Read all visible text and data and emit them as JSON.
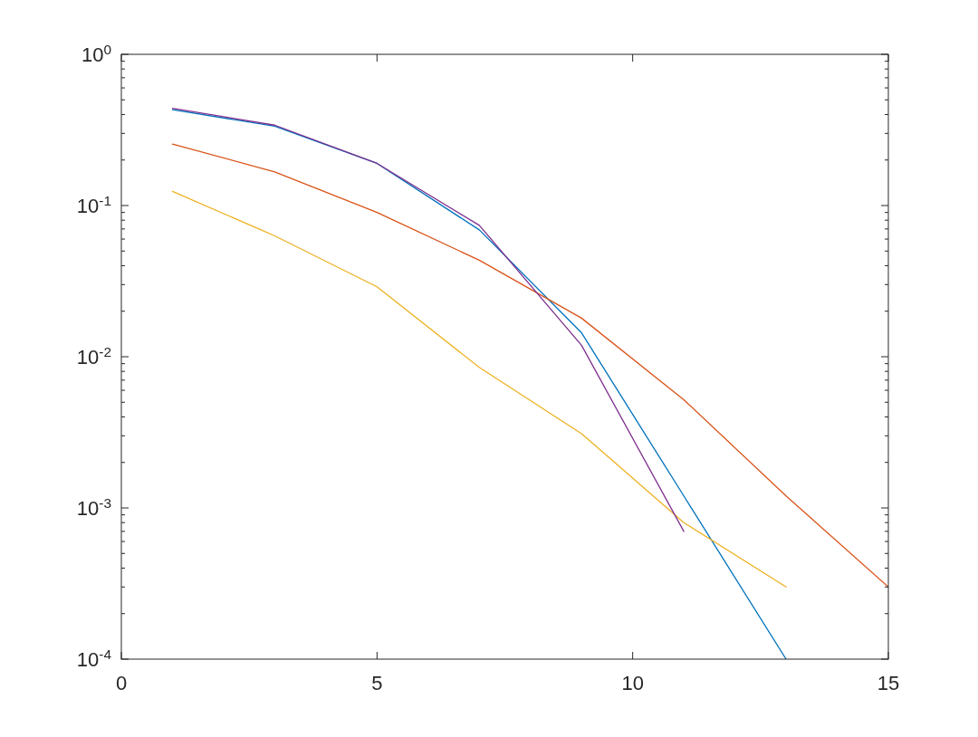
{
  "chart_data": {
    "type": "line",
    "line_style": "solid",
    "log": "y",
    "xlim": [
      0,
      15
    ],
    "xticks": [
      0,
      5,
      10,
      15
    ],
    "ylim": [
      0.0001,
      1
    ],
    "yticks": [
      {
        "value": 0.0001,
        "label": "10$^{-4}$"
      },
      {
        "value": 0.0002,
        "label": null
      },
      {
        "value": 0.0003,
        "label": null
      },
      {
        "value": 0.0004,
        "label": null
      },
      {
        "value": 0.0005,
        "label": null
      },
      {
        "value": 0.0006,
        "label": null
      },
      {
        "value": 0.0007,
        "label": null
      },
      {
        "value": 0.0008,
        "label": null
      },
      {
        "value": 0.0009,
        "label": null
      },
      {
        "value": 0.001,
        "label": "10$^{-3}$"
      },
      {
        "value": 0.002,
        "label": null
      },
      {
        "value": 0.003,
        "label": null
      },
      {
        "value": 0.004,
        "label": null
      },
      {
        "value": 0.005,
        "label": null
      },
      {
        "value": 0.006,
        "label": null
      },
      {
        "value": 0.007,
        "label": null
      },
      {
        "value": 0.008,
        "label": null
      },
      {
        "value": 0.009,
        "label": null
      },
      {
        "value": 0.01,
        "label": "10$^{-2}$"
      },
      {
        "value": 0.02,
        "label": null
      },
      {
        "value": 0.03,
        "label": null
      },
      {
        "value": 0.04,
        "label": null
      },
      {
        "value": 0.05,
        "label": null
      },
      {
        "value": 0.06,
        "label": null
      },
      {
        "value": 0.07,
        "label": null
      },
      {
        "value": 0.08,
        "label": null
      },
      {
        "value": 0.09,
        "label": null
      },
      {
        "value": 0.1,
        "label": "10$^{-1}$"
      },
      {
        "value": 0.2,
        "label": null
      },
      {
        "value": 0.3,
        "label": null
      },
      {
        "value": 0.4,
        "label": null
      },
      {
        "value": 0.5,
        "label": null
      },
      {
        "value": 0.6,
        "label": null
      },
      {
        "value": 0.7,
        "label": null
      },
      {
        "value": 0.8,
        "label": null
      },
      {
        "value": 0.9,
        "label": null
      },
      {
        "value": 1,
        "label": "10$^{0}$"
      }
    ],
    "series": [
      {
        "color": "#0072bd",
        "x": [
          1,
          3,
          5,
          7,
          9,
          11,
          13
        ],
        "values": [
          0.43,
          0.335,
          0.19,
          0.069,
          0.0144,
          0.0012,
          0.0001
        ]
      },
      {
        "color": "#d95319",
        "x": [
          1,
          3,
          5,
          7,
          9,
          11,
          13,
          15
        ],
        "values": [
          0.255,
          0.167,
          0.09,
          0.0435,
          0.018,
          0.0052,
          0.0012,
          0.0003
        ]
      },
      {
        "color": "#edb120",
        "x": [
          1,
          3,
          5,
          7,
          9,
          11,
          13
        ],
        "values": [
          0.124,
          0.063,
          0.029,
          0.0085,
          0.0031,
          0.0008,
          0.0003
        ]
      },
      {
        "color": "#7e2f8e",
        "x": [
          1,
          3,
          5,
          7,
          9,
          11
        ],
        "values": [
          0.44,
          0.34,
          0.19,
          0.074,
          0.0119,
          0.0007
        ]
      }
    ]
  }
}
